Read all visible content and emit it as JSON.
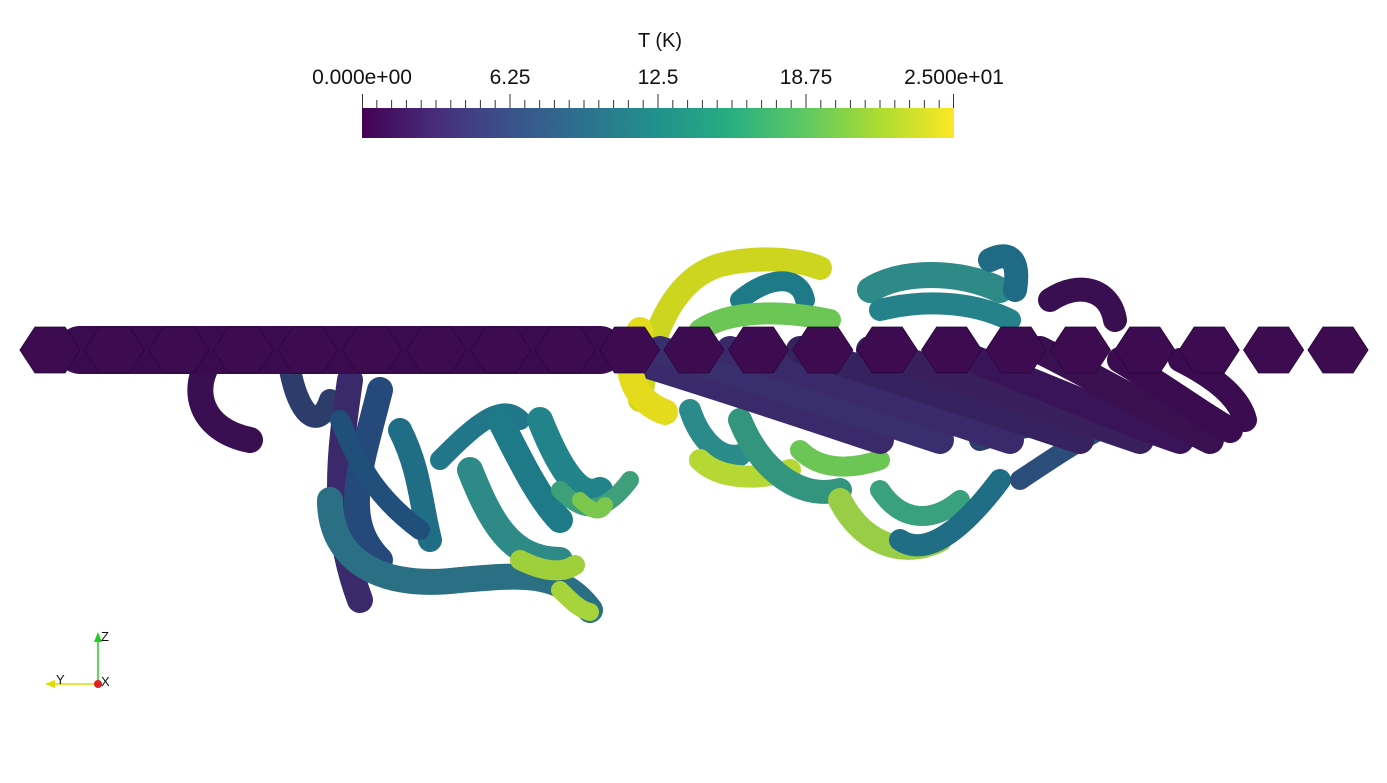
{
  "scalar_bar": {
    "title": "T (K)",
    "labels": [
      "0.000e+00",
      "6.25",
      "12.5",
      "18.75",
      "2.500e+01"
    ],
    "range": [
      0,
      25
    ],
    "colormap": "viridis",
    "colors": [
      "#440154",
      "#3b528b",
      "#21918c",
      "#5ec962",
      "#fde725"
    ]
  },
  "orientation_axes": {
    "z_label": "Z",
    "y_label": "Y",
    "x_label": "X",
    "z_color": "#22cc22",
    "y_color": "#dddd00",
    "x_color": "#dd2222"
  },
  "scene": {
    "background": "#ffffff",
    "glyph_count": 21,
    "glyph_color": "#3d0b4f"
  }
}
